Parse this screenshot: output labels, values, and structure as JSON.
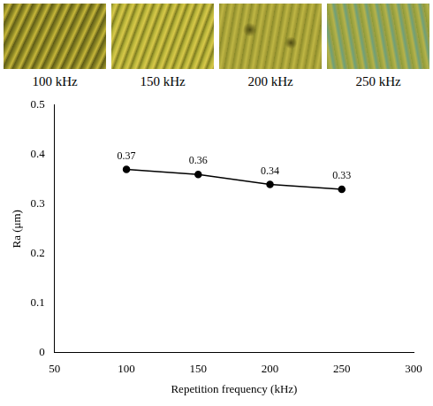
{
  "panels": {
    "labels": [
      "100 kHz",
      "150 kHz",
      "200 kHz",
      "250 kHz"
    ]
  },
  "chart_data": {
    "type": "line",
    "x": [
      100,
      150,
      200,
      250
    ],
    "values": [
      0.37,
      0.36,
      0.34,
      0.33
    ],
    "x_label": "Repetition frequency (kHz)",
    "y_label": "Ra (μm)",
    "xlim": [
      50,
      300
    ],
    "xticks": [
      50,
      100,
      150,
      200,
      250,
      300
    ],
    "ylim": [
      0,
      0.5
    ],
    "yticks": [
      0,
      0.1,
      0.2,
      0.3,
      0.4,
      0.5
    ],
    "color": "#000000",
    "marker": "circle",
    "line_style": "solid",
    "grid": false,
    "data_labels": true
  }
}
